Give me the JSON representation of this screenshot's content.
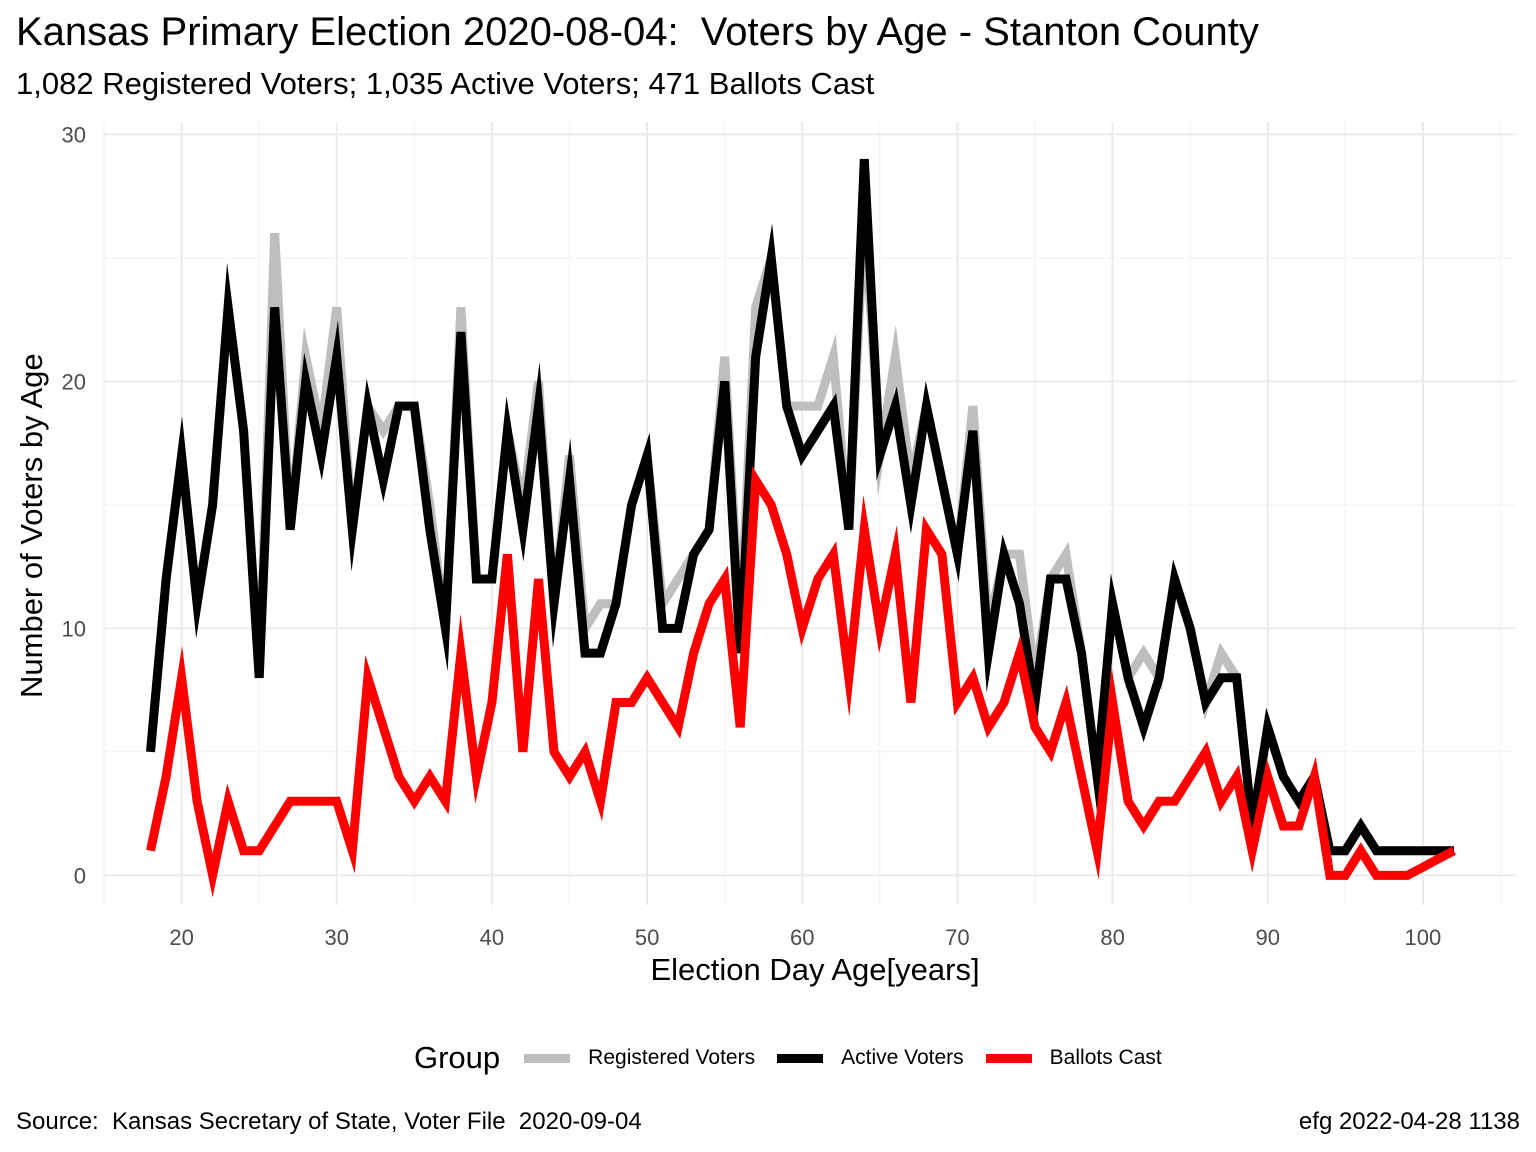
{
  "chart_data": {
    "type": "line",
    "title": "Kansas Primary Election 2020-08-04:  Voters by Age - Stanton County",
    "subtitle": "1,082 Registered Voters; 1,035 Active Voters; 471 Ballots Cast",
    "xlabel": "Election Day Age[years]",
    "ylabel": "Number of Voters by Age",
    "xlim": [
      15,
      106
    ],
    "ylim": [
      -1.2,
      30.5
    ],
    "x_ticks": [
      20,
      30,
      40,
      50,
      60,
      70,
      80,
      90,
      100
    ],
    "y_ticks": [
      0,
      10,
      20,
      30
    ],
    "grid": true,
    "legend_title": "Group",
    "legend_position": "bottom",
    "x": [
      18,
      19,
      20,
      21,
      22,
      23,
      24,
      25,
      26,
      27,
      28,
      29,
      30,
      31,
      32,
      33,
      34,
      35,
      36,
      37,
      38,
      39,
      40,
      41,
      42,
      43,
      44,
      45,
      46,
      47,
      48,
      49,
      50,
      51,
      52,
      53,
      54,
      55,
      56,
      57,
      58,
      59,
      60,
      61,
      62,
      63,
      64,
      65,
      66,
      67,
      68,
      69,
      70,
      71,
      72,
      73,
      74,
      75,
      76,
      77,
      78,
      79,
      80,
      81,
      82,
      83,
      84,
      85,
      86,
      87,
      88,
      89,
      90,
      91,
      92,
      93,
      94,
      95,
      96,
      97,
      98,
      99,
      100,
      101,
      102
    ],
    "series": [
      {
        "name": "Registered Voters",
        "color": "#bebebe",
        "values": [
          5,
          12,
          17,
          11,
          15,
          23,
          18,
          8,
          26,
          14,
          21,
          18,
          23,
          14,
          19,
          18,
          19,
          19,
          15,
          10,
          23,
          12,
          12,
          18,
          15,
          20,
          11,
          17,
          10,
          11,
          11,
          15,
          17,
          11,
          12,
          13,
          14,
          21,
          10,
          23,
          25,
          19,
          19,
          19,
          21,
          14,
          27,
          17,
          21,
          16,
          19,
          16,
          13,
          19,
          10,
          13,
          13,
          8,
          12,
          13,
          9,
          4,
          11,
          8,
          9,
          8,
          12,
          10,
          7,
          9,
          8,
          2,
          6,
          4,
          3,
          4,
          1,
          1,
          2,
          1,
          1,
          1,
          1,
          1,
          1
        ]
      },
      {
        "name": "Active Voters",
        "color": "#000000",
        "values": [
          5,
          12,
          17,
          11,
          15,
          23,
          18,
          8,
          23,
          14,
          20,
          17,
          21,
          14,
          19,
          16,
          19,
          19,
          14,
          10,
          22,
          12,
          12,
          18,
          14,
          19,
          11,
          16,
          9,
          9,
          11,
          15,
          17,
          10,
          10,
          13,
          14,
          20,
          9,
          21,
          25,
          19,
          17,
          18,
          19,
          14,
          29,
          17,
          19,
          15,
          19,
          16,
          13,
          18,
          9,
          13,
          11,
          7,
          12,
          12,
          9,
          4,
          11,
          8,
          6,
          8,
          12,
          10,
          7,
          8,
          8,
          2,
          6,
          4,
          3,
          4,
          1,
          1,
          2,
          1,
          1,
          1,
          1,
          1,
          1
        ]
      },
      {
        "name": "Ballots Cast",
        "color": "#ff0000",
        "values": [
          1,
          4,
          8,
          3,
          0,
          3,
          1,
          1,
          2,
          3,
          3,
          3,
          3,
          1,
          8,
          6,
          4,
          3,
          4,
          3,
          9,
          4,
          7,
          13,
          5,
          12,
          5,
          4,
          5,
          3,
          7,
          7,
          8,
          7,
          6,
          9,
          11,
          12,
          6,
          16,
          15,
          13,
          10,
          12,
          13,
          8,
          14,
          10,
          13,
          7,
          14,
          13,
          7,
          8,
          6,
          7,
          9,
          6,
          5,
          7,
          4,
          1,
          7,
          3,
          2,
          3,
          3,
          4,
          5,
          3,
          4,
          1,
          4,
          2,
          2,
          4,
          0,
          0,
          1,
          0,
          0,
          0,
          0.33,
          0.67,
          1
        ]
      }
    ]
  },
  "caption": {
    "source": "Source:  Kansas Secretary of State, Voter File  2020-09-04",
    "credit": "efg 2022-04-28 1138"
  }
}
